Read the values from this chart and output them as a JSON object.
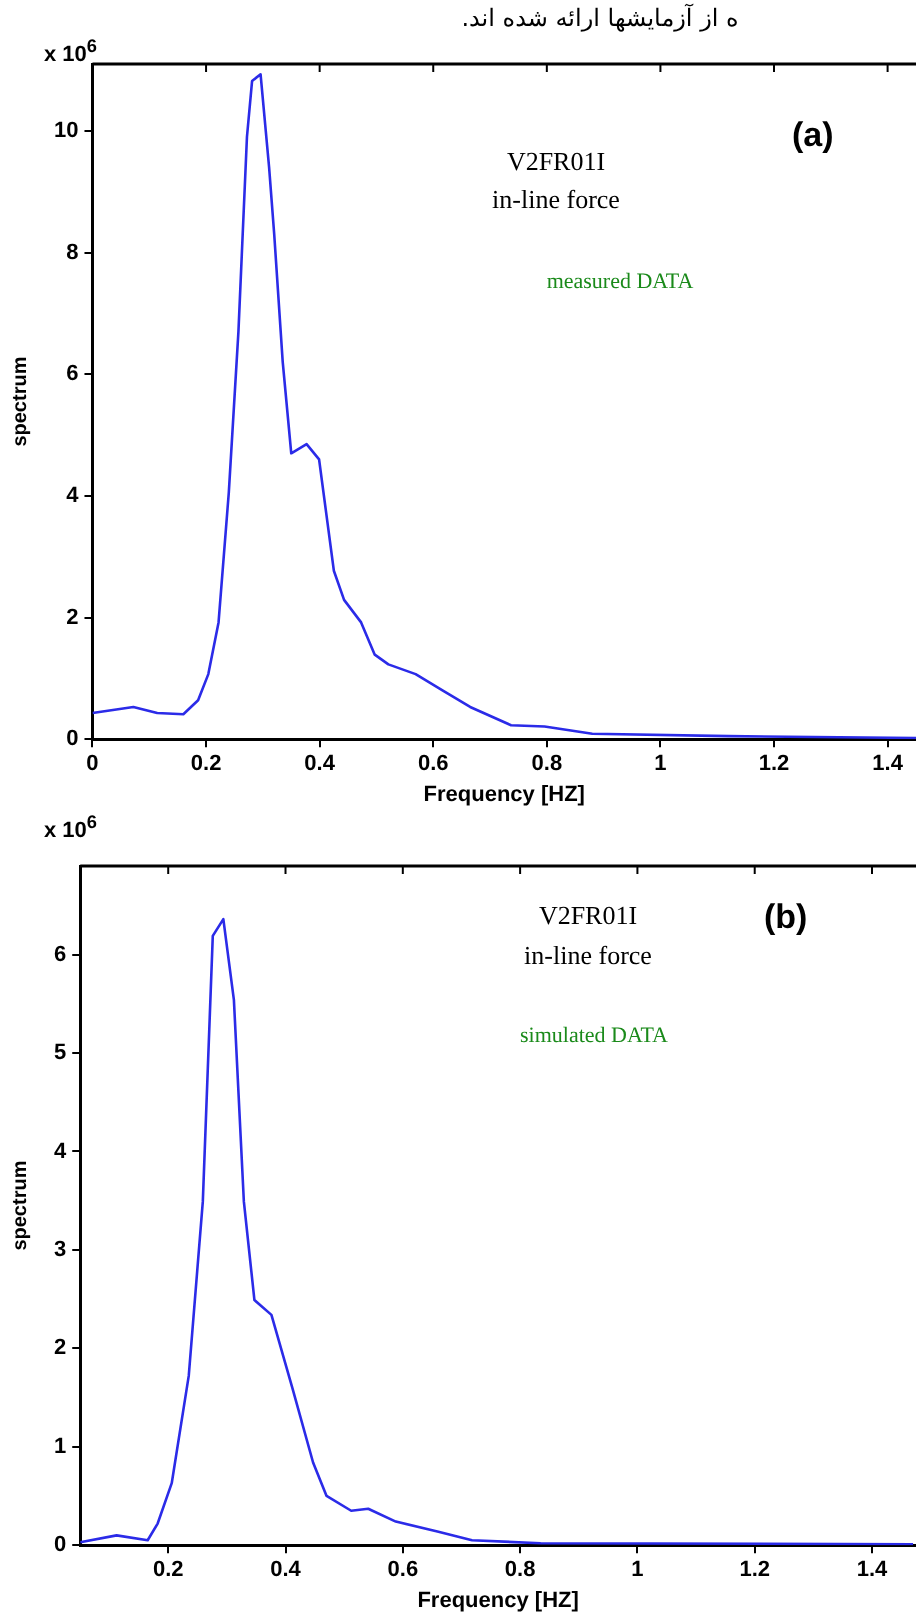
{
  "chart_data": [
    {
      "type": "line",
      "xlabel": "Frequency [HZ]",
      "ylabel": "spectrum",
      "annotations": [
        "x 10$^{6}$",
        "(a)",
        "V2FR01I",
        "in-line force",
        "measured DATA",
        "ه از آزمایشها ارائه شده اند."
      ],
      "x": [
        0,
        0.072,
        0.114,
        0.16,
        0.186,
        0.204,
        0.222,
        0.24,
        0.257,
        0.272,
        0.281,
        0.296,
        0.311,
        0.32,
        0.335,
        0.35,
        0.377,
        0.399,
        0.425,
        0.443,
        0.473,
        0.497,
        0.521,
        0.569,
        0.617,
        0.665,
        0.737,
        0.796,
        0.88,
        1.12,
        1.45
      ],
      "series": [
        {
          "color": "#2b2be8",
          "values": [
            0.43,
            0.53,
            0.43,
            0.41,
            0.64,
            1.07,
            1.92,
            4.05,
            6.7,
            9.9,
            10.82,
            10.93,
            9.4,
            8.3,
            6.2,
            4.7,
            4.85,
            4.6,
            2.77,
            2.29,
            1.92,
            1.39,
            1.23,
            1.07,
            0.8,
            0.53,
            0.23,
            0.21,
            0.09,
            0.05,
            0.02
          ]
        }
      ],
      "xlim": [
        0,
        1.45
      ],
      "ylim": [
        0,
        11.1
      ],
      "xticks": [
        0,
        0.2,
        0.4,
        0.6,
        0.8,
        1,
        1.2,
        1.4
      ],
      "yticks": [
        0,
        2,
        4,
        6,
        8,
        10
      ],
      "grid": false,
      "legend": false,
      "marker": "none",
      "line_style": "solid"
    },
    {
      "type": "line",
      "xlabel": "Frequency [HZ]",
      "ylabel": "spectrum",
      "annotations": [
        "x 10$^{6}$",
        "(b)",
        "V2FR01I",
        "in-line force",
        "simulated DATA"
      ],
      "x": [
        0.05,
        0.112,
        0.165,
        0.182,
        0.206,
        0.235,
        0.259,
        0.276,
        0.294,
        0.312,
        0.329,
        0.347,
        0.376,
        0.412,
        0.447,
        0.47,
        0.512,
        0.541,
        0.588,
        0.659,
        0.718,
        0.835,
        1.47
      ],
      "series": [
        {
          "color": "#2b2be8",
          "values": [
            0.03,
            0.1,
            0.05,
            0.22,
            0.63,
            1.72,
            3.49,
            6.19,
            6.36,
            5.54,
            3.49,
            2.49,
            2.34,
            1.59,
            0.84,
            0.5,
            0.35,
            0.37,
            0.24,
            0.14,
            0.05,
            0.02,
            0.01
          ]
        }
      ],
      "xlim": [
        0.05,
        1.475
      ],
      "ylim": [
        0,
        6.9
      ],
      "xticks": [
        0.2,
        0.4,
        0.6,
        0.8,
        1,
        1.2,
        1.4
      ],
      "yticks": [
        0,
        1,
        2,
        3,
        4,
        5,
        6
      ],
      "grid": false,
      "legend": false,
      "marker": "none",
      "line_style": "solid"
    }
  ]
}
